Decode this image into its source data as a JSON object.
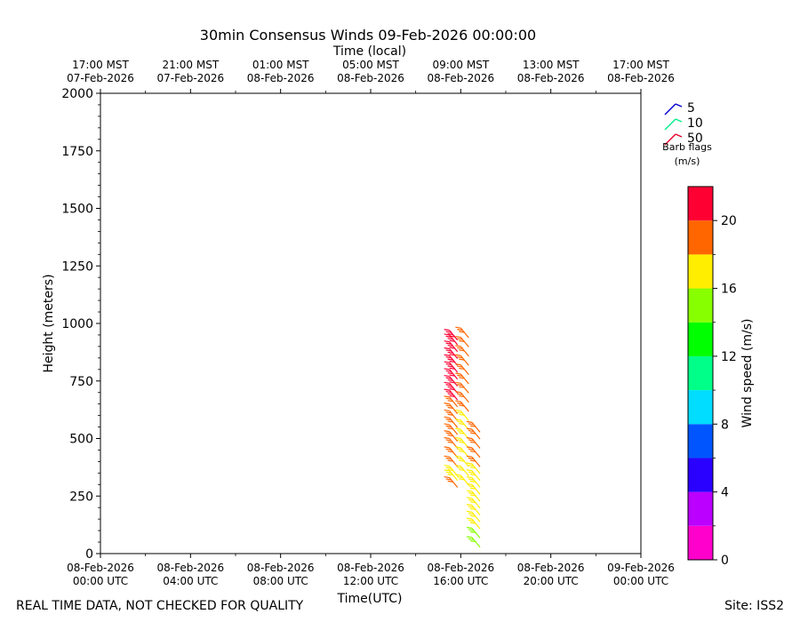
{
  "title": "30min Consensus Winds 09-Feb-2026 00:00:00",
  "top_axis_label": "Time (local)",
  "x_axis_label": "Time(UTC)",
  "y_axis_label": "Height (meters)",
  "footer_left": "REAL TIME DATA, NOT CHECKED FOR QUALITY",
  "footer_right": "Site: ISS2",
  "legend": {
    "items": [
      {
        "label": "5",
        "color": "#0000cc"
      },
      {
        "label": "10",
        "color": "#00ee88"
      },
      {
        "label": "50",
        "color": "#e8002a"
      }
    ],
    "caption_line1": "Barb flags",
    "caption_line2": "(m/s)"
  },
  "colorbar": {
    "label": "Wind speed (m/s)",
    "min": 0,
    "max": 22,
    "tick_values": [
      0,
      4,
      8,
      12,
      16,
      20
    ],
    "tick_labels": [
      "0",
      "4",
      "8",
      "12",
      "16",
      "20"
    ],
    "segment_colors": [
      "#ff00cc",
      "#bb00ff",
      "#2a00ff",
      "#0055ff",
      "#00ddff",
      "#00ff88",
      "#00ff00",
      "#88ff00",
      "#ffee00",
      "#ff6600",
      "#ff0033"
    ]
  },
  "chart_data": {
    "type": "wind-barb-profile",
    "title": "30min Consensus Winds 09-Feb-2026 00:00:00",
    "xlabel": "Time(UTC)",
    "ylabel": "Height (meters)",
    "xlim_hours": [
      0,
      24
    ],
    "ylim": [
      0,
      2000
    ],
    "y_ticks": [
      0,
      250,
      500,
      750,
      1000,
      1250,
      1500,
      1750,
      2000
    ],
    "bottom_ticks": [
      {
        "hour": 0,
        "line1": "08-Feb-2026",
        "line2": "00:00 UTC"
      },
      {
        "hour": 4,
        "line1": "08-Feb-2026",
        "line2": "04:00 UTC"
      },
      {
        "hour": 8,
        "line1": "08-Feb-2026",
        "line2": "08:00 UTC"
      },
      {
        "hour": 12,
        "line1": "08-Feb-2026",
        "line2": "12:00 UTC"
      },
      {
        "hour": 16,
        "line1": "08-Feb-2026",
        "line2": "16:00 UTC"
      },
      {
        "hour": 20,
        "line1": "08-Feb-2026",
        "line2": "20:00 UTC"
      },
      {
        "hour": 24,
        "line1": "09-Feb-2026",
        "line2": "00:00 UTC"
      }
    ],
    "top_ticks": [
      {
        "hour": 0,
        "line1": "17:00 MST",
        "line2": "07-Feb-2026"
      },
      {
        "hour": 4,
        "line1": "21:00 MST",
        "line2": "07-Feb-2026"
      },
      {
        "hour": 8,
        "line1": "01:00 MST",
        "line2": "08-Feb-2026"
      },
      {
        "hour": 12,
        "line1": "05:00 MST",
        "line2": "08-Feb-2026"
      },
      {
        "hour": 16,
        "line1": "09:00 MST",
        "line2": "08-Feb-2026"
      },
      {
        "hour": 20,
        "line1": "13:00 MST",
        "line2": "08-Feb-2026"
      },
      {
        "hour": 24,
        "line1": "17:00 MST",
        "line2": "08-Feb-2026"
      }
    ],
    "profiles": [
      {
        "hour": 15.5,
        "barbs": [
          {
            "height": 330,
            "speed": 19
          },
          {
            "height": 360,
            "speed": 17
          },
          {
            "height": 380,
            "speed": 17
          },
          {
            "height": 420,
            "speed": 19
          },
          {
            "height": 460,
            "speed": 19
          },
          {
            "height": 500,
            "speed": 19
          },
          {
            "height": 530,
            "speed": 19
          },
          {
            "height": 560,
            "speed": 19
          },
          {
            "height": 590,
            "speed": 19
          },
          {
            "height": 620,
            "speed": 19
          },
          {
            "height": 650,
            "speed": 19
          },
          {
            "height": 680,
            "speed": 19
          },
          {
            "height": 710,
            "speed": 20
          },
          {
            "height": 740,
            "speed": 21
          },
          {
            "height": 770,
            "speed": 21
          },
          {
            "height": 800,
            "speed": 21
          },
          {
            "height": 830,
            "speed": 21
          },
          {
            "height": 860,
            "speed": 21
          },
          {
            "height": 890,
            "speed": 21
          },
          {
            "height": 920,
            "speed": 21
          },
          {
            "height": 950,
            "speed": 21
          },
          {
            "height": 970,
            "speed": 21
          }
        ]
      },
      {
        "hour": 16.0,
        "barbs": [
          {
            "height": 340,
            "speed": 17
          },
          {
            "height": 380,
            "speed": 17
          },
          {
            "height": 420,
            "speed": 17
          },
          {
            "height": 460,
            "speed": 17
          },
          {
            "height": 500,
            "speed": 17
          },
          {
            "height": 540,
            "speed": 17
          },
          {
            "height": 580,
            "speed": 17
          },
          {
            "height": 620,
            "speed": 17
          },
          {
            "height": 660,
            "speed": 19
          },
          {
            "height": 700,
            "speed": 19
          },
          {
            "height": 740,
            "speed": 19
          },
          {
            "height": 780,
            "speed": 19
          },
          {
            "height": 820,
            "speed": 19
          },
          {
            "height": 860,
            "speed": 19
          },
          {
            "height": 900,
            "speed": 19
          },
          {
            "height": 940,
            "speed": 19
          },
          {
            "height": 980,
            "speed": 19
          }
        ]
      },
      {
        "hour": 16.5,
        "barbs": [
          {
            "height": 70,
            "speed": 15
          },
          {
            "height": 110,
            "speed": 15
          },
          {
            "height": 150,
            "speed": 16
          },
          {
            "height": 180,
            "speed": 17
          },
          {
            "height": 210,
            "speed": 17
          },
          {
            "height": 240,
            "speed": 17
          },
          {
            "height": 270,
            "speed": 17
          },
          {
            "height": 300,
            "speed": 17
          },
          {
            "height": 330,
            "speed": 17
          },
          {
            "height": 360,
            "speed": 17
          },
          {
            "height": 390,
            "speed": 17
          },
          {
            "height": 420,
            "speed": 19
          },
          {
            "height": 460,
            "speed": 19
          },
          {
            "height": 500,
            "speed": 19
          },
          {
            "height": 540,
            "speed": 19
          },
          {
            "height": 570,
            "speed": 19
          }
        ]
      }
    ]
  }
}
